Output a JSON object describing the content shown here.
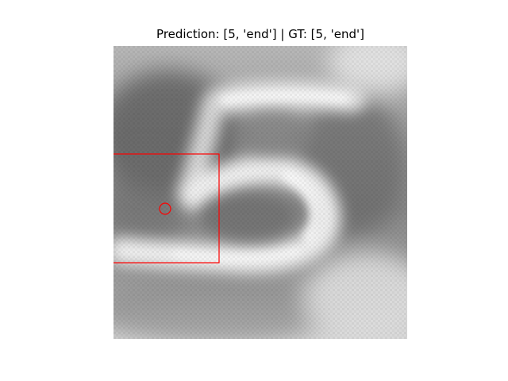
{
  "figure": {
    "title": "Prediction: [5, 'end'] | GT: [5, 'end']"
  },
  "image": {
    "subject": "blurry grayscale digit 5",
    "digit_label": "5"
  },
  "annotation": {
    "box_color": "#ff0000",
    "marker_color": "#ff0000",
    "marker_shape": "circle"
  }
}
